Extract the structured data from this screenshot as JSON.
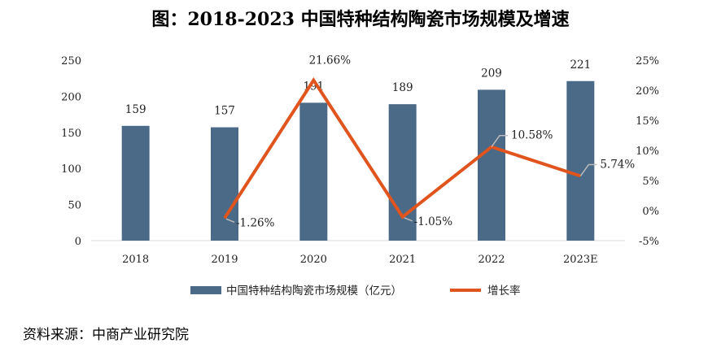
{
  "title": "图：2018-2023 中国特种结构陶瓷市场规模及增速",
  "source": "资料来源：中商产业研究院",
  "colors": {
    "bar": "#4A6A87",
    "line": "#E0541E",
    "callout": "#BBBBBB"
  },
  "chart_data": {
    "type": "bar",
    "categories": [
      "2018",
      "2019",
      "2020",
      "2021",
      "2022",
      "2023E"
    ],
    "series": [
      {
        "name": "中国特种结构陶瓷市场规模（亿元）",
        "type": "bar",
        "axis": "left",
        "values": [
          159,
          157,
          191,
          189,
          209,
          221
        ],
        "labels": [
          "159",
          "157",
          "191",
          "189",
          "209",
          "221"
        ]
      },
      {
        "name": "增长率",
        "type": "line",
        "axis": "right",
        "values": [
          null,
          -1.26,
          21.66,
          -1.05,
          10.58,
          5.74
        ],
        "labels": [
          "",
          "-1.26%",
          "21.66%",
          "-1.05%",
          "10.58%",
          "5.74%"
        ]
      }
    ],
    "y_left": {
      "min": 0,
      "max": 250,
      "ticks": [
        "0",
        "50",
        "100",
        "150",
        "200",
        "250"
      ]
    },
    "y_right": {
      "min": -5,
      "max": 25,
      "ticks": [
        "-5%",
        "0%",
        "5%",
        "10%",
        "15%",
        "20%",
        "25%"
      ]
    },
    "grid": false,
    "legend_position": "bottom"
  }
}
